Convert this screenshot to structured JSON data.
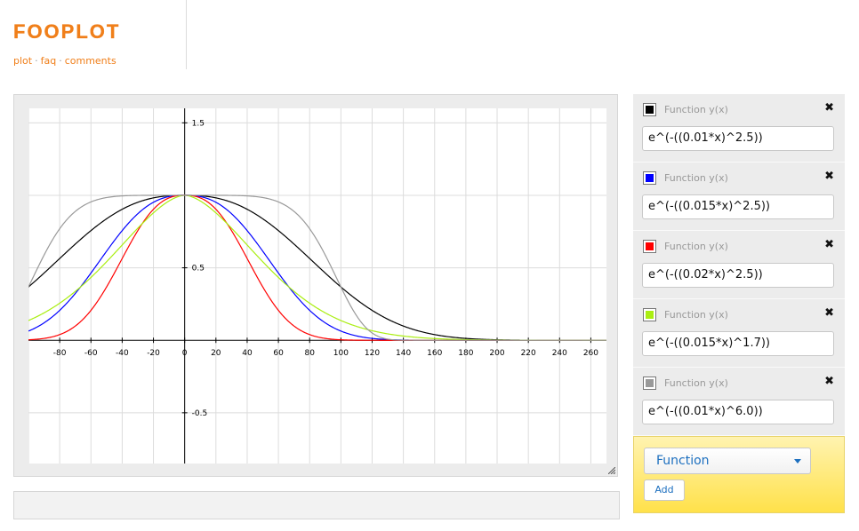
{
  "header": {
    "logo": "FOOPLOT",
    "nav": [
      {
        "label": "plot"
      },
      {
        "label": "faq"
      },
      {
        "label": "comments"
      }
    ],
    "separator": "·"
  },
  "functions": [
    {
      "type_label": "Function y(x)",
      "expr": "e^(-((0.01*x)^2.5))",
      "color": "#000000",
      "k": 0.01,
      "p": 2.5
    },
    {
      "type_label": "Function y(x)",
      "expr": "e^(-((0.015*x)^2.5))",
      "color": "#0000ff",
      "k": 0.015,
      "p": 2.5
    },
    {
      "type_label": "Function y(x)",
      "expr": "e^(-((0.02*x)^2.5))",
      "color": "#ff0000",
      "k": 0.02,
      "p": 2.5
    },
    {
      "type_label": "Function y(x)",
      "expr": "e^(-((0.015*x)^1.7))",
      "color": "#aaee11",
      "k": 0.015,
      "p": 1.7
    },
    {
      "type_label": "Function y(x)",
      "expr": "e^(-((0.01*x)^6.0))",
      "color": "#999999",
      "k": 0.01,
      "p": 6.0
    }
  ],
  "close_glyph": "✖",
  "add_panel": {
    "type_value": "Function",
    "add_label": "Add"
  },
  "chart_data": {
    "type": "line",
    "xlim": [
      -100,
      270
    ],
    "ylim": [
      -0.85,
      1.6
    ],
    "x_ticks": [
      -80,
      -60,
      -40,
      -20,
      0,
      20,
      40,
      60,
      80,
      100,
      120,
      140,
      160,
      180,
      200,
      220,
      240,
      260
    ],
    "y_ticks": [
      1.5,
      0.5,
      -0.5
    ],
    "y_tick_labels": [
      "1.5",
      "0.5",
      "-0.5"
    ],
    "origin_label": "0",
    "grid": true,
    "series": [
      {
        "expr": "e^(-((0.01*x)^2.5))",
        "color": "#000000"
      },
      {
        "expr": "e^(-((0.015*x)^2.5))",
        "color": "#0000ff"
      },
      {
        "expr": "e^(-((0.02*x)^2.5))",
        "color": "#ff0000"
      },
      {
        "expr": "e^(-((0.015*x)^1.7))",
        "color": "#aaee11"
      },
      {
        "expr": "e^(-((0.01*x)^6.0))",
        "color": "#999999"
      }
    ]
  }
}
